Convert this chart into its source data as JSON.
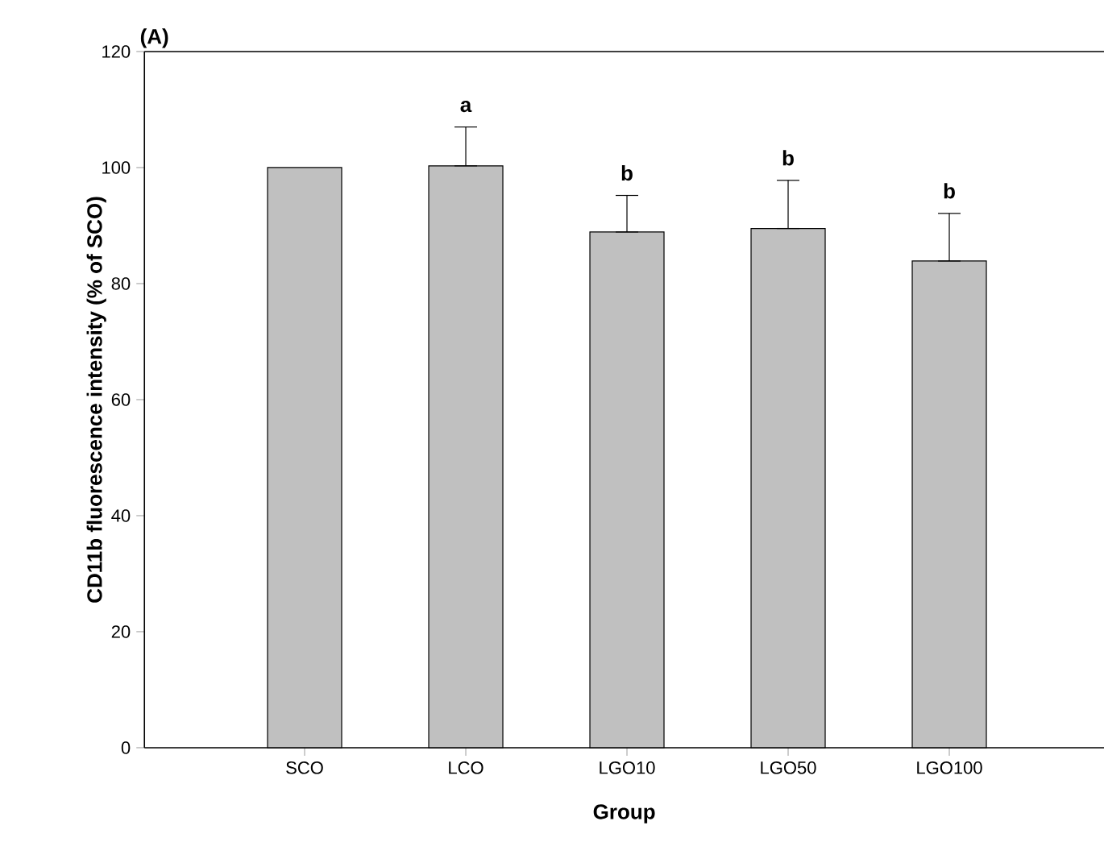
{
  "chart_data": {
    "type": "bar",
    "title": "(A)",
    "xlabel": "Group",
    "ylabel": "CD11b fluorescence intensity (% of SCO)",
    "categories": [
      "SCO",
      "LCO",
      "LGO10",
      "LGO50",
      "LGO100"
    ],
    "values": [
      100,
      100.3,
      88.9,
      89.5,
      83.9
    ],
    "colors": [
      "#c0c0c0",
      "#c0c0c0",
      "#c0c0c0",
      "#c0c0c0",
      "#c0c0c0"
    ],
    "errors": [
      null,
      [
        100.3,
        107.0
      ],
      [
        88.9,
        95.2
      ],
      [
        89.5,
        97.8
      ],
      [
        83.9,
        92.1
      ]
    ],
    "annotations": [
      {
        "text": "a",
        "x": "LCO",
        "y": 107.0
      },
      {
        "text": "b",
        "x": "LGO10",
        "y": 95.2
      },
      {
        "text": "b",
        "x": "LGO50",
        "y": 97.8
      },
      {
        "text": "b",
        "x": "LGO100",
        "y": 92.1
      }
    ],
    "ylim": [
      0,
      120
    ],
    "yticks": [
      0,
      20,
      40,
      60,
      80,
      100,
      120
    ]
  }
}
